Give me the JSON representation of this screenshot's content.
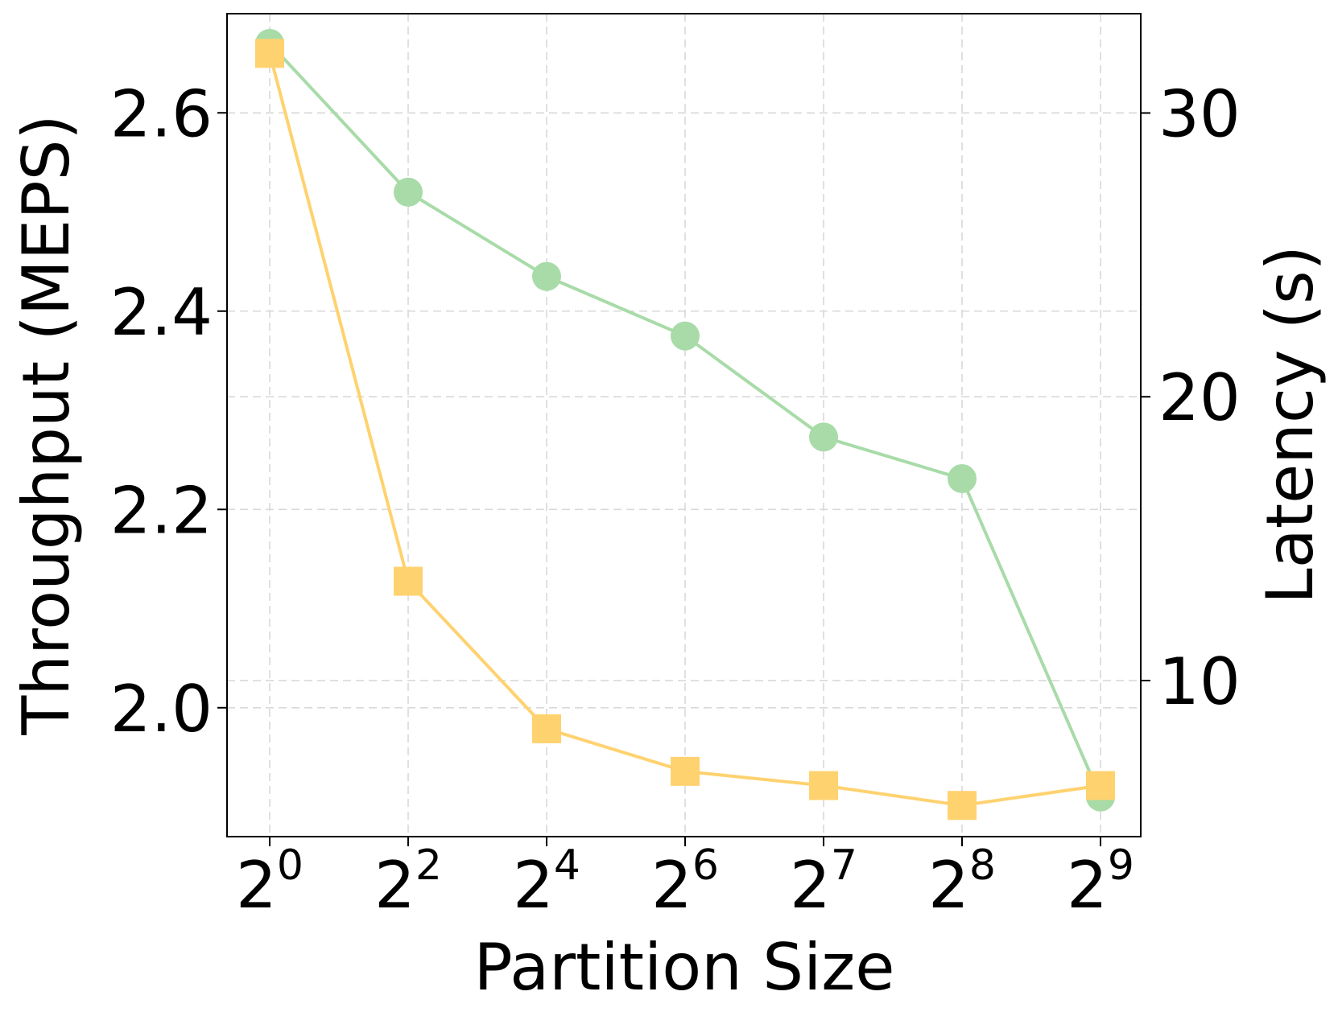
{
  "chart_data": {
    "type": "line",
    "title": "",
    "xlabel": "Partition Size",
    "ylabel_left": "Throughput (MEPS)",
    "ylabel_right": "Latency (s)",
    "categories": [
      {
        "base": "2",
        "exp": "0"
      },
      {
        "base": "2",
        "exp": "2"
      },
      {
        "base": "2",
        "exp": "4"
      },
      {
        "base": "2",
        "exp": "6"
      },
      {
        "base": "2",
        "exp": "7"
      },
      {
        "base": "2",
        "exp": "8"
      },
      {
        "base": "2",
        "exp": "9"
      }
    ],
    "ylim_left": [
      1.87,
      2.7
    ],
    "ylim_right": [
      4.5,
      33.5
    ],
    "yticks_left": [
      "2.0",
      "2.2",
      "2.4",
      "2.6"
    ],
    "ytick_values_left": [
      2.0,
      2.2,
      2.4,
      2.6
    ],
    "yticks_right": [
      "10",
      "20",
      "30"
    ],
    "ytick_values_right": [
      10,
      20,
      30
    ],
    "grid": true,
    "series": [
      {
        "name": "Throughput",
        "axis": "left",
        "marker": "circle",
        "color": "#a8dba8",
        "values": [
          2.67,
          2.52,
          2.435,
          2.375,
          2.273,
          2.231,
          1.91
        ]
      },
      {
        "name": "Latency",
        "axis": "right",
        "marker": "square",
        "color": "#ffd270",
        "values": [
          32.1,
          13.5,
          8.3,
          6.8,
          6.3,
          5.6,
          6.3
        ]
      }
    ]
  }
}
